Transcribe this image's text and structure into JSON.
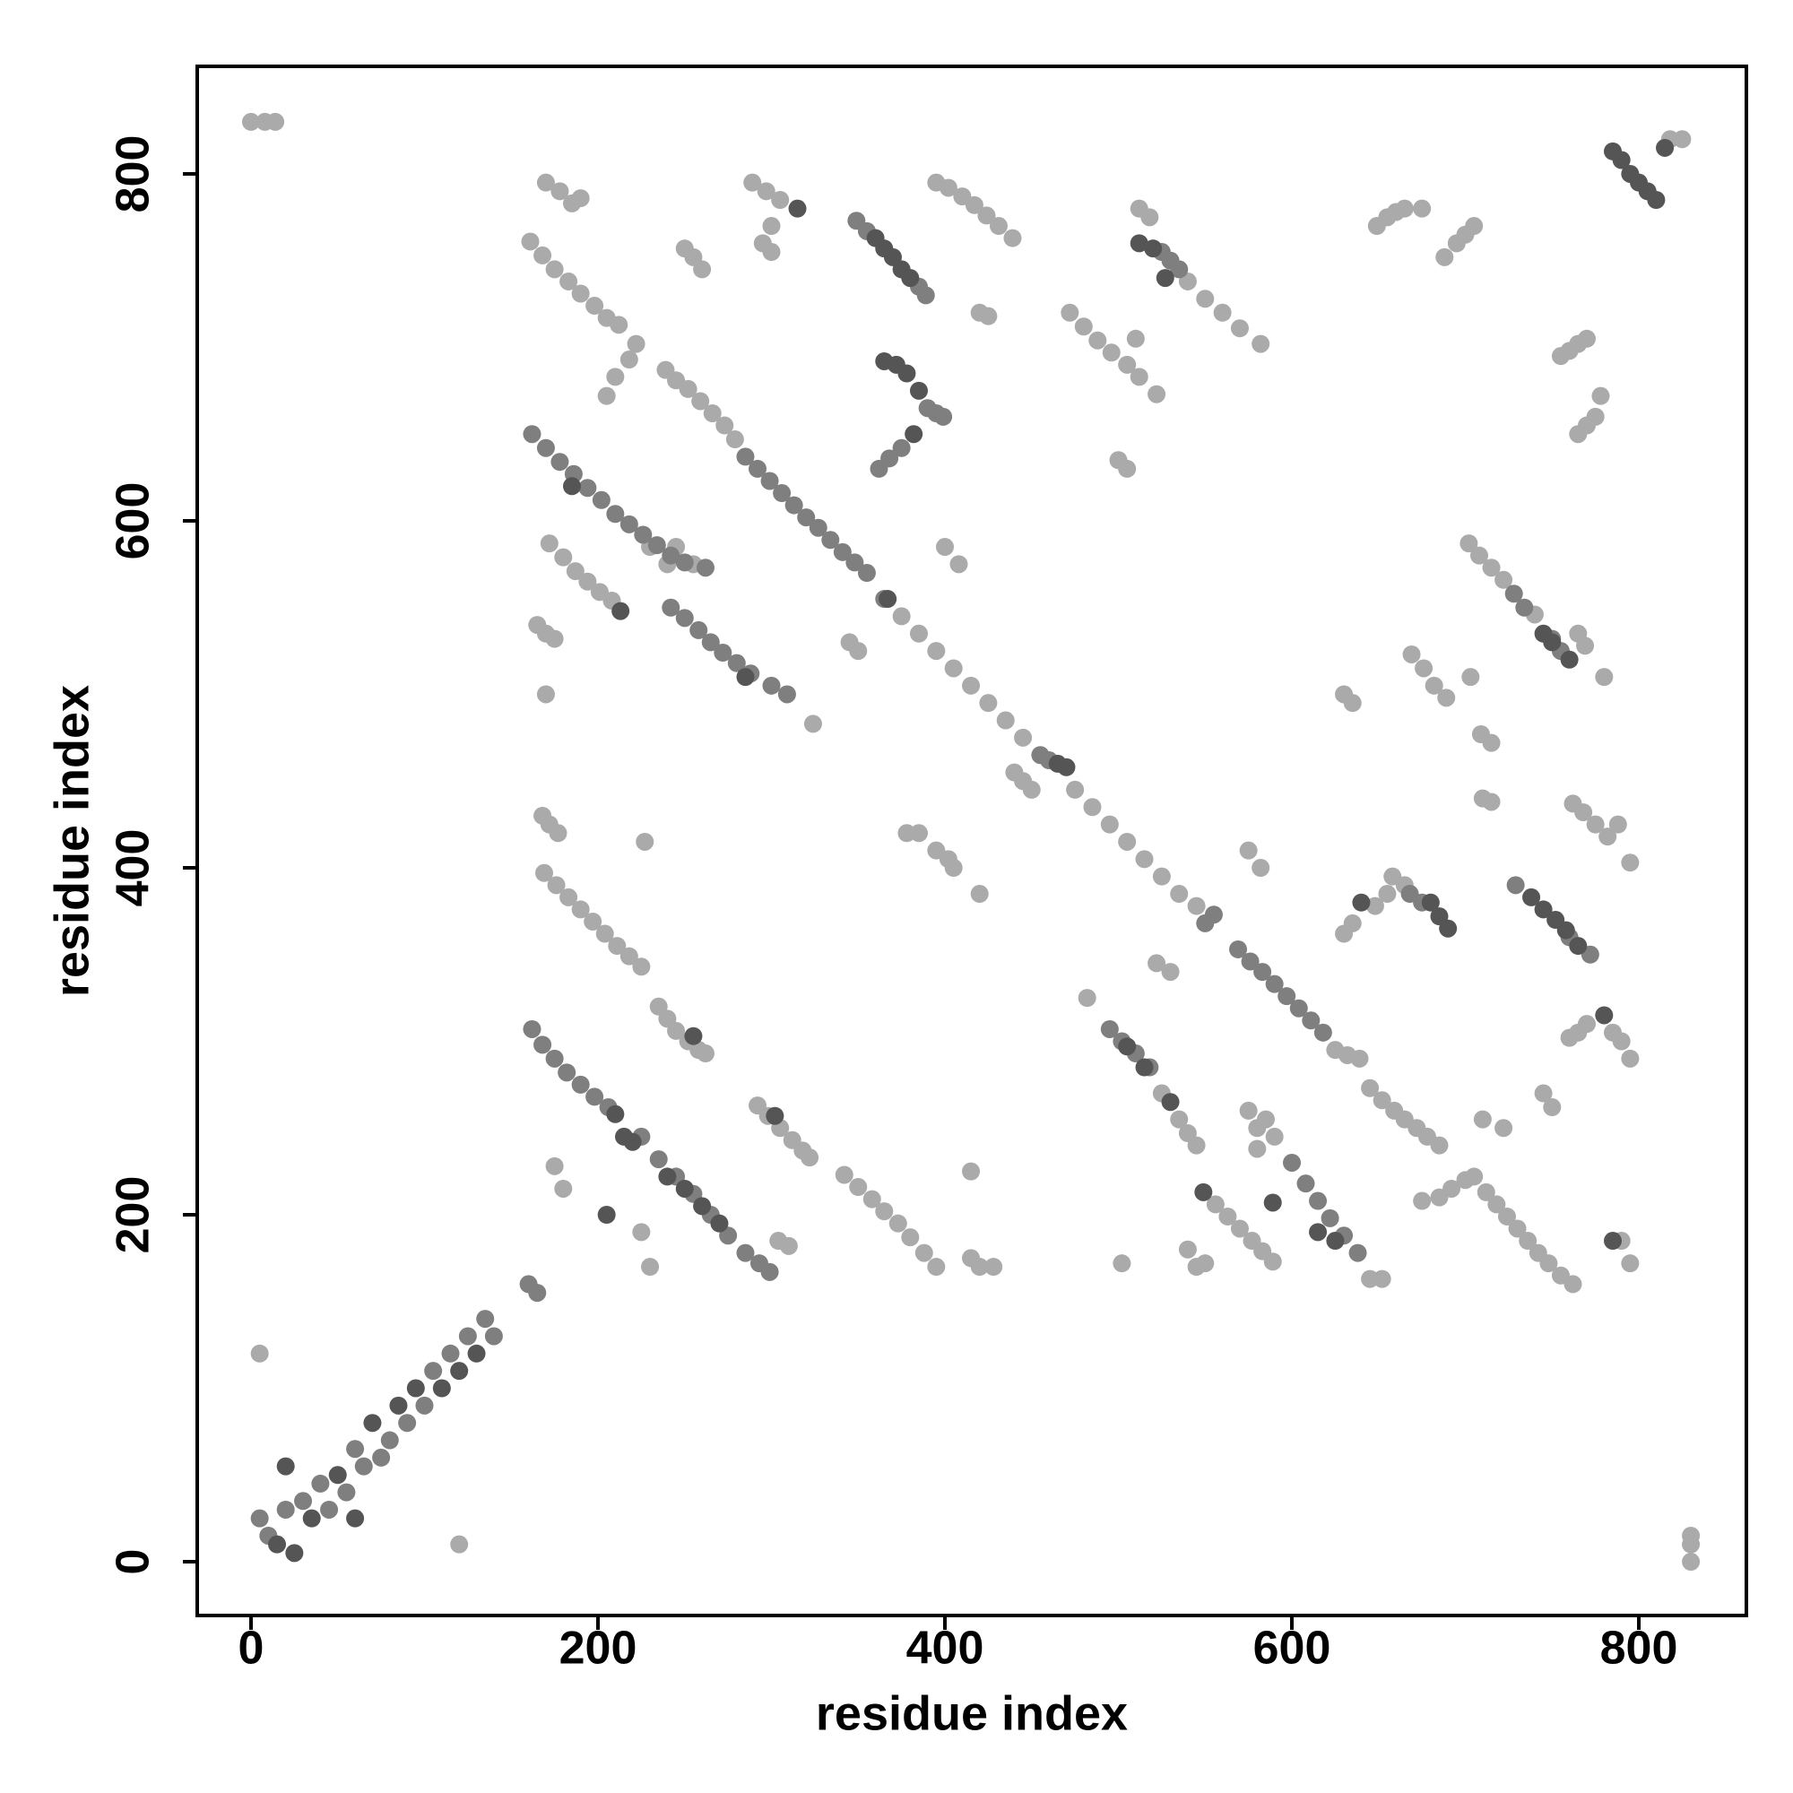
{
  "chart_data": {
    "type": "scatter",
    "xlabel": "residue index",
    "ylabel": "residue index",
    "xlim": [
      -31,
      862
    ],
    "ylim": [
      -31,
      862
    ],
    "xticks": [
      0,
      200,
      400,
      600,
      800
    ],
    "yticks": [
      0,
      200,
      400,
      600,
      800
    ],
    "grid": false,
    "series": [
      {
        "color": "#aaaaaa",
        "x": [
          0,
          8,
          14,
          5,
          120,
          830,
          830,
          830,
          161,
          168,
          175,
          183,
          190,
          198,
          205,
          212,
          170,
          178,
          185,
          190,
          172,
          180,
          187,
          194,
          201,
          208,
          165,
          170,
          175,
          170,
          168,
          172,
          177,
          169,
          176,
          183,
          190,
          197,
          204,
          211,
          218,
          225,
          239,
          245,
          252,
          259,
          266,
          273,
          279,
          205,
          210,
          218,
          222,
          235,
          240,
          245,
          252,
          258,
          262,
          230,
          240,
          245,
          255,
          292,
          298,
          305,
          312,
          318,
          322,
          289,
          297,
          305,
          300,
          295,
          300,
          250,
          255,
          260,
          395,
          402,
          410,
          417,
          424,
          431,
          439,
          420,
          425,
          342,
          350,
          358,
          365,
          373,
          380,
          388,
          395,
          395,
          402,
          405,
          385,
          378,
          420,
          227,
          175,
          180,
          225,
          230,
          324,
          345,
          350,
          400,
          408,
          415,
          420,
          428,
          415,
          500,
          505,
          510,
          482,
          522,
          530,
          502,
          540,
          545,
          550,
          575,
          582,
          703,
          710,
          722,
          745,
          750,
          780,
          304,
          310,
          375,
          385,
          395,
          405,
          415,
          425,
          435,
          445,
          475,
          485,
          495,
          505,
          515,
          525,
          535,
          545,
          440,
          445,
          450,
          472,
          480,
          488,
          496,
          505,
          512,
          522,
          540,
          550,
          560,
          570,
          582,
          512,
          518,
          525,
          535,
          540,
          545,
          556,
          563,
          570,
          577,
          583,
          589,
          625,
          632,
          639,
          575,
          580,
          585,
          590,
          580,
          645,
          652,
          645,
          652,
          659,
          665,
          672,
          678,
          685,
          649,
          655,
          660,
          665,
          675,
          688,
          695,
          700,
          705,
          702,
          708,
          715,
          722,
          740,
          769,
          765,
          762,
          768,
          775,
          782,
          795,
          712,
          718,
          724,
          730,
          736,
          742,
          748,
          755,
          762,
          785,
          790,
          795,
          790,
          795,
          755,
          760,
          765,
          770,
          765,
          770,
          775,
          778,
          669,
          676,
          682,
          689,
          709,
          715,
          630,
          635,
          630,
          635,
          648,
          655,
          675,
          685,
          692,
          700,
          705,
          818,
          825,
          760,
          765,
          770,
          658,
          665,
          710,
          715,
          788
        ],
        "y": [
          830,
          830,
          830,
          120,
          10,
          0,
          10,
          15,
          761,
          753,
          745,
          738,
          731,
          724,
          717,
          713,
          795,
          790,
          783,
          786,
          587,
          579,
          571,
          565,
          559,
          554,
          540,
          535,
          532,
          500,
          430,
          425,
          420,
          397,
          390,
          383,
          376,
          369,
          362,
          355,
          349,
          343,
          687,
          681,
          676,
          669,
          662,
          655,
          647,
          672,
          683,
          693,
          702,
          320,
          313,
          306,
          300,
          295,
          293,
          585,
          575,
          585,
          575,
          263,
          257,
          250,
          243,
          237,
          233,
          795,
          790,
          785,
          770,
          760,
          755,
          757,
          752,
          745,
          795,
          792,
          787,
          782,
          776,
          770,
          763,
          720,
          718,
          223,
          216,
          209,
          202,
          195,
          187,
          178,
          170,
          410,
          405,
          400,
          420,
          420,
          385,
          415,
          228,
          215,
          190,
          170,
          483,
          530,
          525,
          585,
          575,
          175,
          170,
          170,
          225,
          635,
          630,
          705,
          325,
          345,
          340,
          172,
          180,
          170,
          172,
          410,
          400,
          510,
          255,
          250,
          270,
          262,
          510,
          185,
          182,
          545,
          535,
          525,
          515,
          505,
          495,
          485,
          475,
          445,
          435,
          425,
          415,
          405,
          395,
          385,
          378,
          455,
          450,
          445,
          720,
          712,
          704,
          697,
          690,
          683,
          673,
          738,
          728,
          720,
          711,
          702,
          780,
          775,
          270,
          255,
          247,
          240,
          206,
          199,
          192,
          185,
          179,
          173,
          295,
          292,
          290,
          260,
          250,
          255,
          245,
          238,
          163,
          163,
          273,
          266,
          260,
          255,
          250,
          245,
          240,
          770,
          775,
          778,
          780,
          780,
          752,
          760,
          765,
          770,
          587,
          580,
          573,
          566,
          546,
          528,
          535,
          437,
          432,
          425,
          418,
          403,
          213,
          206,
          199,
          192,
          185,
          178,
          172,
          165,
          160,
          305,
          300,
          290,
          185,
          172,
          695,
          698,
          702,
          705,
          650,
          655,
          660,
          672,
          523,
          515,
          505,
          498,
          477,
          472,
          500,
          495,
          362,
          368,
          378,
          385,
          208,
          210,
          215,
          220,
          222,
          820,
          820,
          302,
          305,
          310,
          395,
          390,
          440,
          438,
          425
        ]
      },
      {
        "color": "#7f7f7f",
        "x": [
          5,
          10,
          20,
          30,
          40,
          45,
          55,
          60,
          65,
          75,
          80,
          90,
          100,
          105,
          115,
          125,
          135,
          140,
          160,
          165,
          162,
          170,
          178,
          186,
          194,
          202,
          210,
          218,
          226,
          234,
          242,
          250,
          262,
          162,
          168,
          175,
          182,
          190,
          198,
          206,
          225,
          235,
          245,
          255,
          265,
          275,
          285,
          293,
          299,
          242,
          250,
          258,
          265,
          272,
          280,
          288,
          300,
          309,
          285,
          292,
          299,
          306,
          313,
          320,
          327,
          334,
          341,
          348,
          355,
          349,
          355,
          385,
          389,
          390,
          395,
          399,
          362,
          368,
          375,
          365,
          455,
          460,
          555,
          550,
          525,
          530,
          535,
          495,
          502,
          510,
          518,
          569,
          576,
          583,
          590,
          597,
          604,
          611,
          618,
          600,
          608,
          615,
          622,
          630,
          638,
          728,
          734,
          750,
          755,
          729,
          760,
          772,
          668,
          675
        ],
        "y": [
          25,
          15,
          30,
          35,
          45,
          30,
          40,
          65,
          55,
          60,
          70,
          80,
          90,
          110,
          120,
          130,
          140,
          130,
          160,
          155,
          650,
          642,
          634,
          627,
          619,
          612,
          604,
          598,
          592,
          586,
          580,
          576,
          573,
          307,
          298,
          290,
          282,
          275,
          268,
          262,
          245,
          232,
          222,
          212,
          200,
          188,
          178,
          172,
          167,
          550,
          544,
          537,
          530,
          524,
          518,
          512,
          505,
          500,
          637,
          630,
          623,
          616,
          609,
          602,
          596,
          589,
          582,
          576,
          570,
          773,
          767,
          735,
          730,
          665,
          662,
          660,
          630,
          636,
          642,
          555,
          465,
          462,
          373,
          368,
          755,
          750,
          745,
          307,
          300,
          293,
          285,
          353,
          346,
          340,
          333,
          326,
          319,
          312,
          305,
          230,
          218,
          208,
          198,
          188,
          178,
          558,
          550,
          532,
          525,
          390,
          360,
          350,
          385,
          380
        ]
      },
      {
        "color": "#555555",
        "x": [
          15,
          25,
          35,
          50,
          70,
          85,
          95,
          110,
          120,
          130,
          20,
          60,
          215,
          220,
          210,
          205,
          213,
          185,
          285,
          240,
          250,
          260,
          270,
          360,
          365,
          370,
          375,
          380,
          365,
          372,
          378,
          385,
          382,
          367,
          465,
          470,
          512,
          520,
          527,
          505,
          515,
          530,
          549,
          589,
          615,
          625,
          738,
          745,
          752,
          758,
          765,
          680,
          685,
          690,
          785,
          790,
          795,
          800,
          805,
          810,
          815,
          745,
          750,
          760,
          780,
          785,
          640,
          255,
          302,
          315
        ],
        "y": [
          10,
          5,
          25,
          50,
          80,
          90,
          100,
          100,
          110,
          120,
          55,
          25,
          245,
          242,
          258,
          200,
          548,
          620,
          510,
          222,
          215,
          205,
          195,
          763,
          757,
          752,
          745,
          740,
          692,
          690,
          685,
          675,
          650,
          555,
          460,
          458,
          760,
          757,
          740,
          297,
          285,
          265,
          213,
          207,
          190,
          185,
          383,
          376,
          370,
          364,
          355,
          380,
          372,
          365,
          813,
          808,
          800,
          795,
          790,
          785,
          815,
          535,
          530,
          520,
          315,
          185,
          380,
          303,
          257,
          780
        ]
      }
    ]
  }
}
